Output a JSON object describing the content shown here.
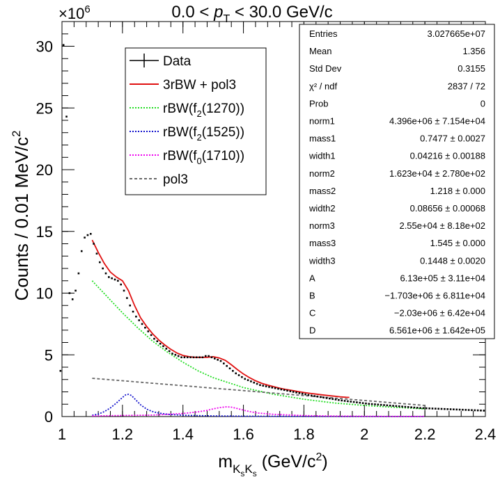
{
  "chart_data": {
    "type": "scatter",
    "title_parts": [
      "0.0 < ",
      "p",
      "T",
      " < 30.0 GeV/c"
    ],
    "xlabel_parts": [
      "m",
      "K",
      "s",
      "K",
      "s",
      " (GeV/c",
      "2",
      ")"
    ],
    "ylabel_parts": [
      "Counts / 0.01 MeV/c",
      "2"
    ],
    "y_multiplier_parts": [
      "×10",
      "6"
    ],
    "xlim": [
      1.0,
      2.4
    ],
    "ylim": [
      0,
      32
    ],
    "x_ticks": [
      1.0,
      1.2,
      1.4,
      1.6,
      1.8,
      2.0,
      2.2,
      2.4
    ],
    "x_tick_labels": [
      "1",
      "1.2",
      "1.4",
      "1.6",
      "1.8",
      "2",
      "2.2",
      "2.4"
    ],
    "y_ticks": [
      0,
      5,
      10,
      15,
      20,
      25,
      30
    ],
    "y_tick_labels": [
      "0",
      "5",
      "10",
      "15",
      "20",
      "25",
      "30"
    ],
    "grid": false,
    "series": [
      {
        "name": "Data",
        "kind": "points",
        "color": "#000000",
        "x": [
          0.995,
          1.005,
          1.015,
          1.025,
          1.035,
          1.045,
          1.055,
          1.065,
          1.075,
          1.085,
          1.095,
          1.105,
          1.115,
          1.125,
          1.135,
          1.145,
          1.155,
          1.165,
          1.175,
          1.185,
          1.195,
          1.205,
          1.215,
          1.225,
          1.235,
          1.245,
          1.255,
          1.265,
          1.275,
          1.285,
          1.295,
          1.305,
          1.315,
          1.325,
          1.335,
          1.345,
          1.355,
          1.365,
          1.375,
          1.385,
          1.395,
          1.405,
          1.415,
          1.425,
          1.435,
          1.445,
          1.455,
          1.465,
          1.475,
          1.485,
          1.495,
          1.505,
          1.515,
          1.525,
          1.535,
          1.545,
          1.555,
          1.565,
          1.575,
          1.585,
          1.595,
          1.605,
          1.615,
          1.625,
          1.635,
          1.645,
          1.655,
          1.665,
          1.675,
          1.685,
          1.695,
          1.705,
          1.715,
          1.725,
          1.735,
          1.745,
          1.755,
          1.765,
          1.775,
          1.785,
          1.795,
          1.805,
          1.815,
          1.825,
          1.835,
          1.845,
          1.855,
          1.865,
          1.875,
          1.885,
          1.895,
          1.905,
          1.915,
          1.925,
          1.935,
          1.945,
          1.955,
          1.965,
          1.975,
          1.985,
          1.995,
          2.005,
          2.015,
          2.025,
          2.035,
          2.045,
          2.055,
          2.065,
          2.075,
          2.085,
          2.095,
          2.105,
          2.115,
          2.125,
          2.135,
          2.145,
          2.155,
          2.165,
          2.175,
          2.185,
          2.195,
          2.205,
          2.215,
          2.225,
          2.235,
          2.245,
          2.255,
          2.265,
          2.275,
          2.285,
          2.295,
          2.305,
          2.315,
          2.325,
          2.335,
          2.345,
          2.355,
          2.365,
          2.375,
          2.385,
          2.395
        ],
        "y": [
          3.7,
          30.1,
          24.3,
          10.0,
          9.5,
          10.2,
          11.6,
          13.4,
          14.5,
          14.7,
          14.8,
          14.0,
          13.2,
          12.5,
          12.0,
          11.6,
          11.3,
          11.2,
          11.1,
          11.0,
          10.7,
          10.2,
          9.6,
          9.0,
          8.5,
          8.1,
          7.8,
          7.5,
          7.2,
          6.9,
          6.6,
          6.3,
          6.1,
          5.9,
          5.7,
          5.5,
          5.3,
          5.1,
          5.0,
          4.9,
          4.8,
          4.8,
          4.8,
          4.8,
          4.8,
          4.8,
          4.8,
          4.8,
          4.9,
          4.9,
          4.8,
          4.7,
          4.6,
          4.5,
          4.3,
          4.1,
          3.9,
          3.7,
          3.5,
          3.35,
          3.2,
          3.05,
          2.95,
          2.85,
          2.75,
          2.65,
          2.55,
          2.5,
          2.45,
          2.4,
          2.35,
          2.3,
          2.25,
          2.2,
          2.15,
          2.1,
          2.05,
          2.0,
          1.95,
          1.9,
          1.85,
          1.8,
          1.75,
          1.7,
          1.66,
          1.62,
          1.58,
          1.54,
          1.5,
          1.46,
          1.42,
          1.38,
          1.34,
          1.3,
          1.27,
          1.24,
          1.21,
          1.18,
          1.15,
          1.12,
          1.09,
          1.06,
          1.03,
          1.01,
          0.99,
          0.97,
          0.95,
          0.93,
          0.91,
          0.89,
          0.87,
          0.85,
          0.83,
          0.81,
          0.79,
          0.77,
          0.75,
          0.73,
          0.71,
          0.69,
          0.68,
          0.67,
          0.66,
          0.65,
          0.64,
          0.63,
          0.62,
          0.61,
          0.6,
          0.59,
          0.58,
          0.57,
          0.56,
          0.55,
          0.54,
          0.53,
          0.52,
          0.51,
          0.5,
          0.49,
          0.48
        ]
      },
      {
        "name": "3rBW + pol3",
        "kind": "line",
        "color": "#e01010",
        "dash": "solid",
        "x": [
          1.1,
          1.12,
          1.14,
          1.16,
          1.18,
          1.2,
          1.22,
          1.24,
          1.26,
          1.28,
          1.3,
          1.32,
          1.34,
          1.36,
          1.38,
          1.4,
          1.42,
          1.44,
          1.46,
          1.48,
          1.5,
          1.52,
          1.54,
          1.56,
          1.58,
          1.6,
          1.62,
          1.64,
          1.66,
          1.68,
          1.7,
          1.72,
          1.74,
          1.76,
          1.78,
          1.8,
          1.82,
          1.84,
          1.86,
          1.88,
          1.9,
          1.92,
          1.94,
          1.95
        ],
        "y": [
          14.3,
          13.3,
          12.4,
          11.7,
          11.3,
          11.0,
          10.2,
          9.0,
          8.0,
          7.3,
          6.7,
          6.2,
          5.8,
          5.45,
          5.15,
          4.95,
          4.85,
          4.8,
          4.8,
          4.8,
          4.85,
          4.75,
          4.55,
          4.2,
          3.8,
          3.45,
          3.15,
          2.9,
          2.7,
          2.55,
          2.42,
          2.3,
          2.2,
          2.12,
          2.03,
          1.95,
          1.88,
          1.82,
          1.76,
          1.7,
          1.65,
          1.6,
          1.56,
          1.55
        ]
      },
      {
        "name": "rBW(f2(1270))",
        "kind": "line",
        "color": "#22dd22",
        "dash": "dotted",
        "x": [
          1.1,
          1.15,
          1.2,
          1.25,
          1.3,
          1.35,
          1.4,
          1.45,
          1.5,
          1.6,
          1.7,
          1.8,
          1.9,
          2.0,
          2.1,
          2.2
        ],
        "y": [
          11.0,
          9.7,
          8.4,
          7.2,
          6.1,
          5.2,
          4.4,
          3.7,
          3.15,
          2.35,
          1.8,
          1.4,
          1.1,
          0.9,
          0.75,
          0.62
        ]
      },
      {
        "name": "rBW(f2(1525))",
        "kind": "line",
        "color": "#1010cc",
        "dash": "dotted",
        "x": [
          1.1,
          1.12,
          1.14,
          1.16,
          1.18,
          1.2,
          1.21,
          1.22,
          1.23,
          1.24,
          1.26,
          1.28,
          1.3,
          1.32,
          1.35,
          1.4,
          1.5,
          1.6,
          1.8,
          2.0,
          2.2
        ],
        "y": [
          0.1,
          0.2,
          0.4,
          0.7,
          1.1,
          1.55,
          1.75,
          1.8,
          1.7,
          1.45,
          0.95,
          0.6,
          0.4,
          0.28,
          0.18,
          0.1,
          0.05,
          0.03,
          0.01,
          0.0,
          0.0
        ]
      },
      {
        "name": "rBW(f0(1710))",
        "kind": "line",
        "color": "#ee00ee",
        "dash": "dotted",
        "x": [
          1.1,
          1.3,
          1.4,
          1.45,
          1.48,
          1.5,
          1.52,
          1.54,
          1.545,
          1.56,
          1.58,
          1.6,
          1.62,
          1.65,
          1.7,
          1.8,
          1.9,
          2.0,
          2.1,
          2.2
        ],
        "y": [
          0.05,
          0.12,
          0.25,
          0.38,
          0.5,
          0.62,
          0.72,
          0.78,
          0.79,
          0.76,
          0.65,
          0.52,
          0.4,
          0.28,
          0.18,
          0.08,
          0.04,
          0.02,
          0.01,
          0.01
        ]
      },
      {
        "name": "pol3",
        "kind": "line",
        "color": "#666666",
        "dash": "dashed",
        "x": [
          1.1,
          1.2,
          1.3,
          1.4,
          1.5,
          1.6,
          1.7,
          1.8,
          1.9,
          2.0,
          2.1,
          2.2
        ],
        "y": [
          3.1,
          2.9,
          2.7,
          2.5,
          2.3,
          2.1,
          1.9,
          1.7,
          1.5,
          1.3,
          1.1,
          0.9
        ]
      }
    ],
    "legend": [
      {
        "name": "Data",
        "sym": "data"
      },
      {
        "name": "3rBW + pol3",
        "sym": "solid",
        "color": "#e01010"
      },
      {
        "label_parts": [
          "rBW(f",
          "2",
          "(1270))"
        ],
        "sym": "dotted",
        "color": "#22dd22"
      },
      {
        "label_parts": [
          "rBW(f",
          "2",
          "(1525))"
        ],
        "sym": "dotted",
        "color": "#1010cc"
      },
      {
        "label_parts": [
          "rBW(f",
          "0",
          "(1710))"
        ],
        "sym": "dotted",
        "color": "#ee00ee"
      },
      {
        "name": "pol3",
        "sym": "dashed",
        "color": "#666666"
      }
    ],
    "stats": [
      {
        "label": "Entries",
        "value": "3.027665e+07"
      },
      {
        "label": "Mean",
        "value": "1.356"
      },
      {
        "label": "Std Dev",
        "value": "0.3155"
      },
      {
        "label": "χ² / ndf",
        "value": "2837 / 72"
      },
      {
        "label": "Prob",
        "value": "0"
      },
      {
        "label": "norm1",
        "value": "4.396e+06 ± 7.154e+04"
      },
      {
        "label": "mass1",
        "value": "0.7477 ± 0.0027"
      },
      {
        "label": "width1",
        "value": "0.04216 ± 0.00188"
      },
      {
        "label": "norm2",
        "value": "1.623e+04 ± 2.780e+02"
      },
      {
        "label": "mass2",
        "value": "1.218 ± 0.000"
      },
      {
        "label": "width2",
        "value": "0.08656 ± 0.00068"
      },
      {
        "label": "norm3",
        "value": "2.55e+04 ± 8.18e+02"
      },
      {
        "label": "mass3",
        "value": "1.545 ± 0.000"
      },
      {
        "label": "width3",
        "value": "0.1448 ± 0.0020"
      },
      {
        "label": "A",
        "value": "6.13e+05 ± 3.11e+04"
      },
      {
        "label": "B",
        "value": "−1.703e+06 ± 6.811e+04"
      },
      {
        "label": "C",
        "value": "−2.03e+06 ± 6.42e+04"
      },
      {
        "label": "D",
        "value": "6.561e+06 ± 1.642e+05"
      }
    ]
  }
}
